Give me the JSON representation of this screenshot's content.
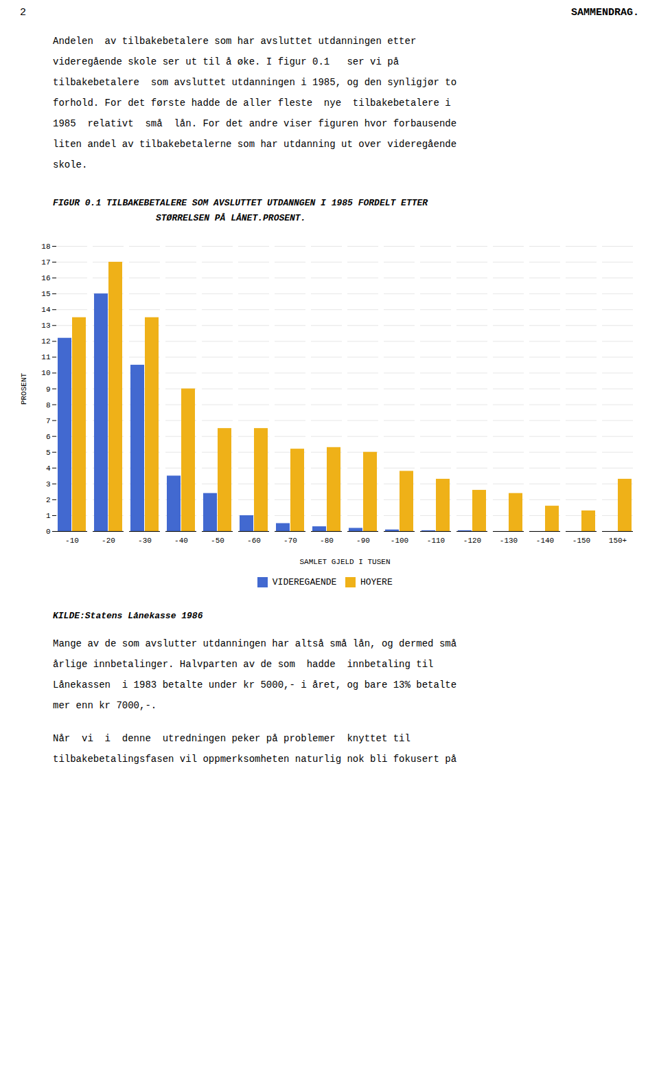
{
  "chart_data": {
    "type": "bar",
    "title": "FIGUR 0.1 TILBAKEBETALERE SOM AVSLUTTET UTDANNGEN I 1985 FORDELT ETTER",
    "subtitle": "STØRRELSEN PÅ LÅNET.PROSENT.",
    "categories": [
      "-10",
      "-20",
      "-30",
      "-40",
      "-50",
      "-60",
      "-70",
      "-80",
      "-90",
      "-100",
      "-110",
      "-120",
      "-130",
      "-140",
      "-150",
      "150+"
    ],
    "series": [
      {
        "name": "VIDEREGAENDE",
        "values": [
          12.2,
          15.0,
          10.5,
          3.5,
          2.4,
          1.0,
          0.5,
          0.3,
          0.2,
          0.1,
          0.05,
          0.05,
          0.0,
          0.0,
          0.0,
          0.0
        ]
      },
      {
        "name": "HOYERE",
        "values": [
          13.5,
          17.0,
          13.5,
          9.0,
          6.5,
          6.5,
          5.2,
          5.3,
          5.0,
          3.8,
          3.3,
          2.6,
          2.4,
          1.6,
          1.3,
          3.3
        ]
      }
    ],
    "ylim": [
      0,
      18
    ],
    "yticks": [
      0,
      1,
      2,
      3,
      4,
      5,
      6,
      7,
      8,
      9,
      10,
      11,
      12,
      13,
      14,
      15,
      16,
      17,
      18
    ],
    "ylabel": "PROSENT",
    "xlabel": "SAMLET GJELD I TUSEN",
    "grid": true,
    "legend": "bottom",
    "annotations": [
      "KILDE:Statens Lånekasse 1986"
    ]
  },
  "page_text": {
    "header_left": "2",
    "header_right": "SAMMENDRAG.",
    "paragraphs_before": [
      [
        "Andelen  av tilbakebetalere som har avsluttet utdanningen etter",
        "videregående skole ser ut til å øke. I figur 0.1   ser vi på",
        "tilbakebetalere  som avsluttet utdanningen i 1985, og den synligjør to",
        "forhold. For det første hadde de aller fleste  nye  tilbakebetalere i",
        "1985  relativt  små  lån. For det andre viser figuren hvor forbausende",
        "liten andel av tilbakebetalerne som har utdanning ut over videregående",
        "skole."
      ]
    ],
    "paragraphs_after": [
      [
        "Mange av de som avslutter utdanningen har altså små lån, og dermed små",
        "årlige innbetalinger. Halvparten av de som  hadde  innbetaling til",
        "Lånekassen  i 1983 betalte under kr 5000,- i året, og bare 13% betalte",
        "mer enn kr 7000,-."
      ],
      [
        "Når  vi  i  denne  utredningen peker på problemer  knyttet til",
        "tilbakebetalingsfasen vil oppmerksomheten naturlig nok bli fokusert på"
      ]
    ]
  }
}
